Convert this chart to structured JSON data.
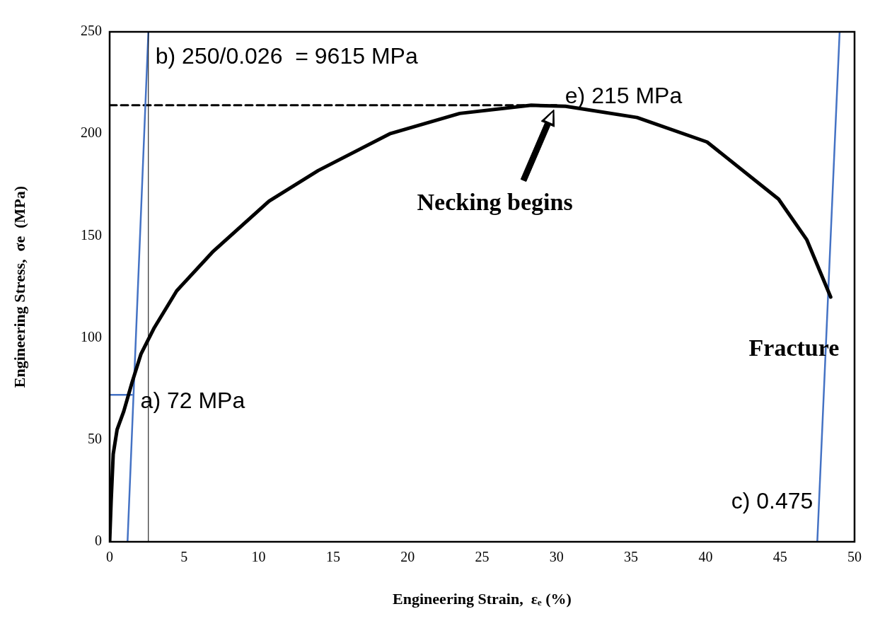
{
  "chart_data": {
    "type": "line",
    "xlabel": "Engineering Strain,  εₑ (%)",
    "ylabel": "Engineering Stress,  σe  (MPa)",
    "xlim": [
      0,
      50
    ],
    "xticks": [
      0,
      5,
      10,
      15,
      20,
      25,
      30,
      35,
      40,
      45,
      50
    ],
    "ylim": [
      0,
      250
    ],
    "yticks": [
      0,
      50,
      100,
      150,
      200,
      250
    ],
    "grid": false,
    "legend": false,
    "marker": "none",
    "series": [
      {
        "color": "#000000",
        "line_style": "solid",
        "x": [
          0,
          0.1,
          0.24,
          0.5,
          0.95,
          1.5,
          2.1,
          3,
          4.5,
          6.9,
          10.7,
          14,
          18.8,
          23.5,
          28.3,
          30.6,
          35.4,
          40.1,
          44.9,
          46.8,
          48.4
        ],
        "values": [
          0,
          20,
          43,
          55,
          64,
          78,
          92,
          105,
          123,
          142,
          167,
          182,
          200,
          210,
          214,
          213.5,
          208,
          196,
          168,
          148,
          120
        ]
      },
      {
        "color": "#4472c4",
        "line_style": "solid",
        "x": [
          1.2,
          2.6
        ],
        "values": [
          0,
          250
        ]
      },
      {
        "color": "#4472c4",
        "line_style": "solid",
        "x": [
          47.5,
          49.0
        ],
        "values": [
          0,
          250
        ]
      },
      {
        "color": "#4472c4",
        "line_style": "solid",
        "x": [
          0,
          1.5
        ],
        "values": [
          72,
          72
        ]
      },
      {
        "color": "#000000",
        "line_style": "dashed",
        "x": [
          0,
          30
        ],
        "values": [
          214,
          214
        ]
      }
    ],
    "ref_lines": [
      {
        "axis": "x",
        "value": 2.6,
        "color": "#000000"
      }
    ],
    "annotations": [
      {
        "text": "b) 250/0.026  = 9615 MPa",
        "x": 2.6,
        "y": 229
      },
      {
        "text": "e) 215 MPa",
        "x": 30,
        "y": 214
      },
      {
        "text": "a) 72 MPa",
        "x": 1.5,
        "y": 72
      },
      {
        "text": "c) 0.475",
        "x": 47.5,
        "y": 0
      },
      "Necking begins",
      {
        "text": "Fracture",
        "x": 48.4,
        "y": 120
      }
    ]
  }
}
